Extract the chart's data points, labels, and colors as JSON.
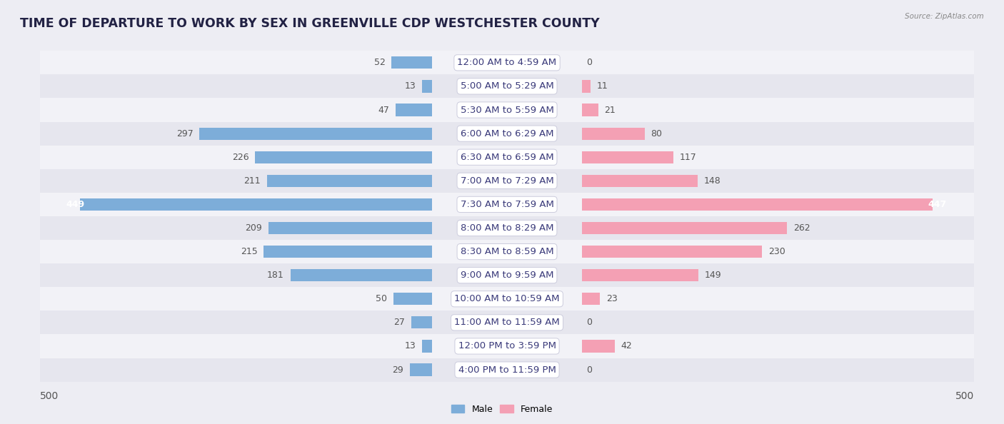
{
  "title": "TIME OF DEPARTURE TO WORK BY SEX IN GREENVILLE CDP WESTCHESTER COUNTY",
  "source": "Source: ZipAtlas.com",
  "categories": [
    "12:00 AM to 4:59 AM",
    "5:00 AM to 5:29 AM",
    "5:30 AM to 5:59 AM",
    "6:00 AM to 6:29 AM",
    "6:30 AM to 6:59 AM",
    "7:00 AM to 7:29 AM",
    "7:30 AM to 7:59 AM",
    "8:00 AM to 8:29 AM",
    "8:30 AM to 8:59 AM",
    "9:00 AM to 9:59 AM",
    "10:00 AM to 10:59 AM",
    "11:00 AM to 11:59 AM",
    "12:00 PM to 3:59 PM",
    "4:00 PM to 11:59 PM"
  ],
  "male_values": [
    52,
    13,
    47,
    297,
    226,
    211,
    449,
    209,
    215,
    181,
    50,
    27,
    13,
    29
  ],
  "female_values": [
    0,
    11,
    21,
    80,
    117,
    148,
    447,
    262,
    230,
    149,
    23,
    0,
    42,
    0
  ],
  "male_color": "#7dadd9",
  "female_color": "#f4a0b4",
  "bar_height": 0.52,
  "max_val": 500,
  "bg_color": "#ededf3",
  "row_colors": [
    "#f2f2f7",
    "#e6e6ee"
  ],
  "axis_tick_label": "500",
  "label_fontsize": 9.5,
  "title_fontsize": 12.5,
  "value_fontsize": 9,
  "cat_label_color": "#3a3a7a",
  "value_color_outside": "#555555",
  "value_color_inside": "#ffffff"
}
